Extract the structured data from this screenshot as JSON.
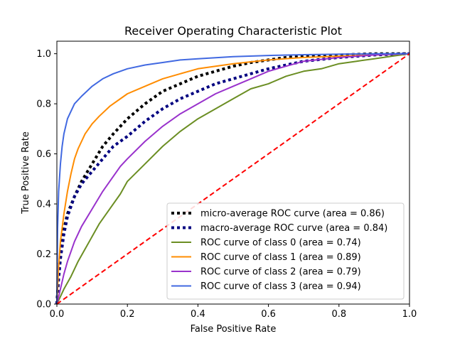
{
  "chart_data": {
    "type": "line",
    "title": "Receiver Operating Characteristic Plot",
    "xlabel": "False Positive Rate",
    "ylabel": "True Positive Rate",
    "xlim": [
      0,
      1
    ],
    "ylim": [
      0,
      1.05
    ],
    "xticks": [
      "0.0",
      "0.2",
      "0.4",
      "0.6",
      "0.8",
      "1.0"
    ],
    "yticks": [
      "0.0",
      "0.2",
      "0.4",
      "0.6",
      "0.8",
      "1.0"
    ],
    "grid": false,
    "legend_position": "lower-right",
    "series": [
      {
        "name": "micro-average ROC curve (area = 0.86)",
        "color": "#000000",
        "style": "dotted",
        "x": [
          0,
          0.005,
          0.01,
          0.02,
          0.03,
          0.05,
          0.07,
          0.1,
          0.13,
          0.16,
          0.2,
          0.25,
          0.3,
          0.35,
          0.4,
          0.45,
          0.5,
          0.55,
          0.6,
          0.65,
          0.7,
          0.8,
          0.9,
          1.0
        ],
        "y": [
          0,
          0.12,
          0.2,
          0.3,
          0.36,
          0.43,
          0.49,
          0.56,
          0.63,
          0.68,
          0.74,
          0.8,
          0.85,
          0.88,
          0.91,
          0.93,
          0.95,
          0.965,
          0.975,
          0.985,
          0.99,
          0.995,
          1.0,
          1.0
        ]
      },
      {
        "name": "macro-average ROC curve (area = 0.84)",
        "color": "#000080",
        "style": "dotted",
        "x": [
          0,
          0.005,
          0.01,
          0.02,
          0.03,
          0.05,
          0.07,
          0.1,
          0.13,
          0.16,
          0.2,
          0.25,
          0.3,
          0.35,
          0.4,
          0.45,
          0.5,
          0.55,
          0.6,
          0.65,
          0.7,
          0.8,
          0.9,
          1.0
        ],
        "y": [
          0,
          0.1,
          0.18,
          0.28,
          0.35,
          0.43,
          0.48,
          0.53,
          0.58,
          0.63,
          0.67,
          0.73,
          0.78,
          0.82,
          0.85,
          0.88,
          0.9,
          0.92,
          0.94,
          0.955,
          0.97,
          0.985,
          0.995,
          1.0
        ]
      },
      {
        "name": "ROC curve of class 0 (area = 0.74)",
        "color": "#6b8e23",
        "style": "solid",
        "x": [
          0,
          0.01,
          0.02,
          0.04,
          0.06,
          0.08,
          0.1,
          0.12,
          0.15,
          0.18,
          0.2,
          0.25,
          0.3,
          0.35,
          0.4,
          0.45,
          0.5,
          0.55,
          0.6,
          0.65,
          0.7,
          0.75,
          0.8,
          0.85,
          0.9,
          0.95,
          1.0
        ],
        "y": [
          0,
          0.03,
          0.06,
          0.11,
          0.17,
          0.22,
          0.27,
          0.32,
          0.38,
          0.44,
          0.49,
          0.56,
          0.63,
          0.69,
          0.74,
          0.78,
          0.82,
          0.86,
          0.88,
          0.91,
          0.93,
          0.94,
          0.96,
          0.97,
          0.98,
          0.99,
          1.0
        ]
      },
      {
        "name": "ROC curve of class 1 (area = 0.89)",
        "color": "#ff8c00",
        "style": "solid",
        "x": [
          0,
          0.005,
          0.01,
          0.02,
          0.03,
          0.04,
          0.05,
          0.06,
          0.08,
          0.1,
          0.12,
          0.15,
          0.18,
          0.2,
          0.25,
          0.3,
          0.35,
          0.4,
          0.45,
          0.5,
          0.6,
          0.7,
          0.8,
          0.9,
          1.0
        ],
        "y": [
          0,
          0.15,
          0.25,
          0.36,
          0.45,
          0.52,
          0.58,
          0.62,
          0.68,
          0.72,
          0.75,
          0.79,
          0.82,
          0.84,
          0.87,
          0.9,
          0.92,
          0.94,
          0.95,
          0.96,
          0.975,
          0.985,
          0.99,
          0.995,
          1.0
        ]
      },
      {
        "name": "ROC curve of class 2 (area = 0.79)",
        "color": "#9932cc",
        "style": "solid",
        "x": [
          0,
          0.01,
          0.02,
          0.03,
          0.05,
          0.07,
          0.1,
          0.13,
          0.15,
          0.18,
          0.2,
          0.25,
          0.3,
          0.35,
          0.4,
          0.45,
          0.5,
          0.55,
          0.6,
          0.65,
          0.7,
          0.8,
          0.9,
          1.0
        ],
        "y": [
          0,
          0.06,
          0.12,
          0.17,
          0.25,
          0.31,
          0.38,
          0.45,
          0.49,
          0.55,
          0.58,
          0.65,
          0.71,
          0.76,
          0.8,
          0.84,
          0.87,
          0.9,
          0.93,
          0.95,
          0.97,
          0.985,
          0.995,
          1.0
        ]
      },
      {
        "name": "ROC curve of class 3 (area = 0.94)",
        "color": "#4169e1",
        "style": "solid",
        "x": [
          0,
          0.002,
          0.005,
          0.01,
          0.015,
          0.02,
          0.03,
          0.04,
          0.05,
          0.07,
          0.1,
          0.13,
          0.16,
          0.2,
          0.25,
          0.3,
          0.35,
          0.4,
          0.5,
          0.6,
          0.7,
          0.8,
          0.9,
          1.0
        ],
        "y": [
          0,
          0.3,
          0.45,
          0.56,
          0.63,
          0.68,
          0.74,
          0.77,
          0.8,
          0.83,
          0.87,
          0.9,
          0.92,
          0.94,
          0.955,
          0.965,
          0.975,
          0.98,
          0.988,
          0.993,
          0.996,
          0.998,
          1.0,
          1.0
        ]
      },
      {
        "name": "",
        "color": "#ff0000",
        "style": "dashed",
        "x": [
          0,
          1
        ],
        "y": [
          0,
          1
        ]
      }
    ]
  }
}
